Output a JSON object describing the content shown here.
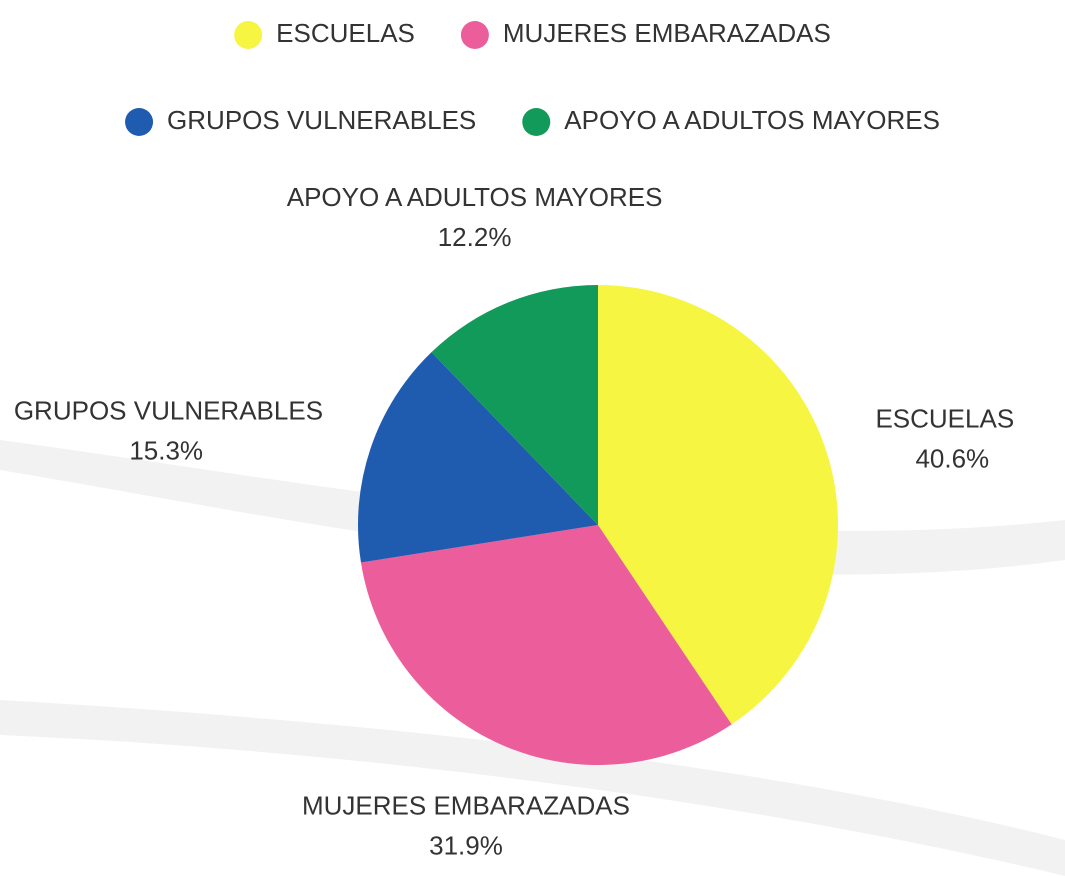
{
  "chart_data": {
    "type": "pie",
    "categories": [
      "ESCUELAS",
      "MUJERES EMBARAZADAS",
      "GRUPOS VULNERABLES",
      "APOYO A ADULTOS MAYORES"
    ],
    "values": [
      40.6,
      31.9,
      15.3,
      12.2
    ],
    "value_labels": [
      "40.6%",
      "31.9%",
      "15.3%",
      "12.2%"
    ],
    "colors": [
      "#f6f542",
      "#eb5e9b",
      "#1f5cb0",
      "#129a5b"
    ]
  }
}
